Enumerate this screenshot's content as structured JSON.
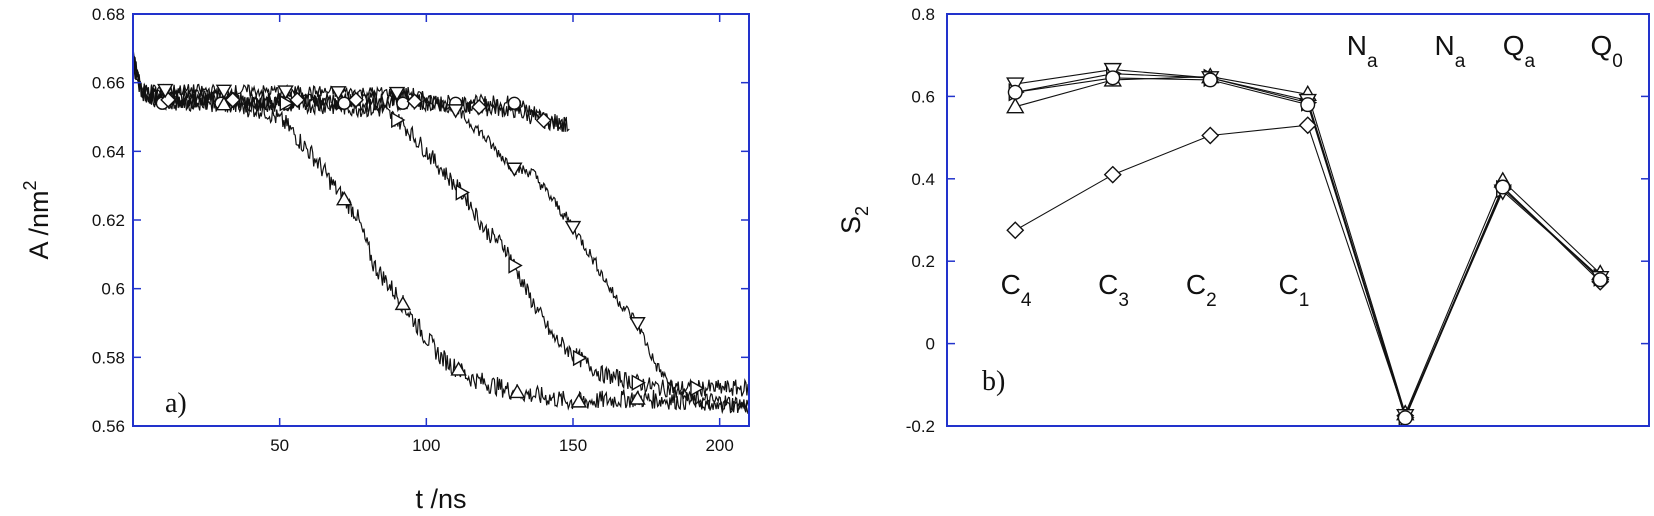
{
  "chart_data": [
    {
      "panel": "a",
      "type": "line",
      "panel_label": "a)",
      "xlabel": "t /ns",
      "ylabel_base": "A /nm",
      "ylabel_sup": "2",
      "xlim": [
        0,
        210
      ],
      "ylim": [
        0.56,
        0.68
      ],
      "xticks": [
        50,
        100,
        150,
        200
      ],
      "xtick_labels": [
        "50",
        "100",
        "150",
        "200"
      ],
      "yticks": [
        0.56,
        0.58,
        0.6,
        0.62,
        0.64,
        0.66,
        0.68
      ],
      "ytick_labels": [
        "0.56",
        "0.58",
        "0.6",
        "0.62",
        "0.64",
        "0.66",
        "0.68"
      ],
      "grid": false,
      "series": [
        {
          "marker": "circle",
          "noise": 0.0025,
          "points": [
            [
              0,
              0.665
            ],
            [
              3,
              0.657
            ],
            [
              10,
              0.654
            ],
            [
              40,
              0.654
            ],
            [
              90,
              0.654
            ],
            [
              130,
              0.654
            ],
            [
              140,
              0.65
            ],
            [
              149,
              0.647
            ]
          ],
          "markers_x": [
            10,
            30,
            52,
            72,
            92,
            110,
            130
          ]
        },
        {
          "marker": "diamond",
          "noise": 0.0025,
          "points": [
            [
              0,
              0.668
            ],
            [
              3,
              0.657
            ],
            [
              10,
              0.655
            ],
            [
              40,
              0.655
            ],
            [
              90,
              0.655
            ],
            [
              130,
              0.652
            ],
            [
              140,
              0.649
            ],
            [
              148,
              0.648
            ]
          ],
          "markers_x": [
            12,
            34,
            56,
            76,
            96,
            118,
            140
          ]
        },
        {
          "marker": "triangle-up",
          "noise": 0.0028,
          "points": [
            [
              0,
              0.667
            ],
            [
              3,
              0.657
            ],
            [
              45,
              0.652
            ],
            [
              52,
              0.648
            ],
            [
              62,
              0.638
            ],
            [
              70,
              0.628
            ],
            [
              76,
              0.622
            ],
            [
              82,
              0.607
            ],
            [
              90,
              0.598
            ],
            [
              98,
              0.588
            ],
            [
              105,
              0.58
            ],
            [
              115,
              0.574
            ],
            [
              130,
              0.57
            ],
            [
              150,
              0.567
            ],
            [
              170,
              0.568
            ],
            [
              200,
              0.567
            ],
            [
              210,
              0.566
            ]
          ],
          "markers_x": [
            31,
            72,
            92,
            111,
            131,
            152,
            172
          ]
        },
        {
          "marker": "triangle-right",
          "noise": 0.0025,
          "points": [
            [
              0,
              0.666
            ],
            [
              3,
              0.657
            ],
            [
              85,
              0.652
            ],
            [
              92,
              0.648
            ],
            [
              100,
              0.64
            ],
            [
              108,
              0.632
            ],
            [
              114,
              0.626
            ],
            [
              120,
              0.617
            ],
            [
              127,
              0.612
            ],
            [
              135,
              0.598
            ],
            [
              143,
              0.586
            ],
            [
              150,
              0.581
            ],
            [
              160,
              0.575
            ],
            [
              170,
              0.573
            ],
            [
              180,
              0.571
            ],
            [
              210,
              0.571
            ]
          ],
          "markers_x": [
            52,
            90,
            112,
            130,
            152,
            172,
            192
          ]
        },
        {
          "marker": "triangle-down",
          "noise": 0.0018,
          "points": [
            [
              0,
              0.668
            ],
            [
              3,
              0.658
            ],
            [
              95,
              0.657
            ],
            [
              110,
              0.652
            ],
            [
              118,
              0.646
            ],
            [
              124,
              0.64
            ],
            [
              130,
              0.635
            ],
            [
              136,
              0.634
            ],
            [
              142,
              0.627
            ],
            [
              150,
              0.618
            ],
            [
              158,
              0.607
            ],
            [
              164,
              0.598
            ],
            [
              172,
              0.59
            ],
            [
              178,
              0.578
            ],
            [
              185,
              0.57
            ],
            [
              195,
              0.566
            ],
            [
              210,
              0.565
            ]
          ],
          "markers_x": [
            11,
            31,
            52,
            70,
            90,
            110,
            130,
            150,
            172
          ]
        }
      ]
    },
    {
      "panel": "b",
      "type": "line",
      "panel_label": "b)",
      "ylabel_base": "S",
      "ylabel_sub": "2",
      "ylim": [
        -0.2,
        0.8
      ],
      "yticks": [
        -0.2,
        0,
        0.2,
        0.4,
        0.6,
        0.8
      ],
      "ytick_labels": [
        "-0.2",
        "0",
        "0.2",
        "0.4",
        "0.6",
        "0.8"
      ],
      "xlim": [
        0.3,
        7.5
      ],
      "grid": false,
      "x": [
        1,
        2,
        3,
        4,
        5,
        6,
        7
      ],
      "groups": [
        {
          "main": "C",
          "sub": "4",
          "x": 0.85,
          "y": 0.12
        },
        {
          "main": "C",
          "sub": "3",
          "x": 1.85,
          "y": 0.12
        },
        {
          "main": "C",
          "sub": "2",
          "x": 2.75,
          "y": 0.12
        },
        {
          "main": "C",
          "sub": "1",
          "x": 3.7,
          "y": 0.12
        },
        {
          "main": "N",
          "sub": "a",
          "x": 4.4,
          "y": 0.7
        },
        {
          "main": "N",
          "sub": "a",
          "x": 5.3,
          "y": 0.7
        },
        {
          "main": "Q",
          "sub": "a",
          "x": 6.0,
          "y": 0.7
        },
        {
          "main": "Q",
          "sub": "0",
          "x": 6.9,
          "y": 0.7
        }
      ],
      "series": [
        {
          "marker": "diamond",
          "values": [
            0.275,
            0.41,
            0.505,
            0.53,
            -0.175,
            0.38,
            0.15
          ]
        },
        {
          "marker": "triangle-up",
          "values": [
            0.575,
            0.64,
            0.648,
            0.605,
            -0.17,
            0.395,
            0.17
          ]
        },
        {
          "marker": "triangle-right",
          "values": [
            0.61,
            0.655,
            0.645,
            0.585,
            -0.18,
            0.375,
            0.16
          ]
        },
        {
          "marker": "triangle-down",
          "values": [
            0.63,
            0.665,
            0.645,
            0.59,
            -0.175,
            0.37,
            0.16
          ]
        },
        {
          "marker": "circle",
          "values": [
            0.61,
            0.645,
            0.64,
            0.58,
            -0.18,
            0.38,
            0.155
          ]
        }
      ]
    }
  ]
}
